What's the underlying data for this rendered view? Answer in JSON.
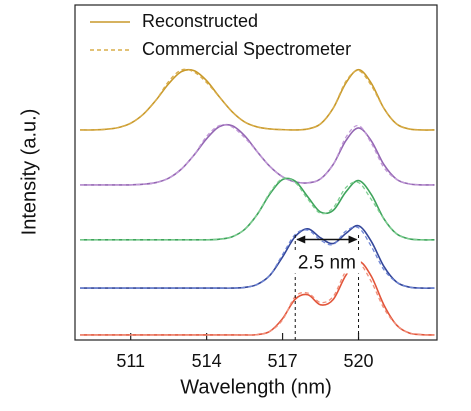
{
  "chart_data": {
    "type": "line",
    "xlabel": "Wavelength (nm)",
    "ylabel": "Intensity (a.u.)",
    "x": [
      509,
      509.5,
      510,
      510.5,
      511,
      511.5,
      512,
      512.5,
      513,
      513.5,
      514,
      514.5,
      515,
      515.5,
      516,
      516.5,
      517,
      517.5,
      518,
      518.5,
      519,
      519.5,
      520,
      520.5,
      521,
      521.5,
      522,
      522.5,
      523
    ],
    "xlim": [
      508.8,
      523.1
    ],
    "xticks": [
      511,
      514,
      517,
      520
    ],
    "ylim": [
      0,
      10
    ],
    "series": [
      {
        "name": "Reconstructed",
        "color": "#c8992a",
        "dashed": false,
        "values": [
          6.27,
          6.27,
          6.29,
          6.34,
          6.47,
          6.74,
          7.16,
          7.65,
          8.01,
          8.04,
          7.74,
          7.26,
          6.82,
          6.51,
          6.36,
          6.3,
          6.28,
          6.27,
          6.3,
          6.45,
          6.92,
          7.67,
          8.07,
          7.67,
          6.92,
          6.45,
          6.3,
          6.27,
          6.27
        ]
      },
      {
        "name": "Commercial Spectrometer",
        "color": "#d9ad4a",
        "dashed": true,
        "values": [
          6.27,
          6.27,
          6.29,
          6.34,
          6.47,
          6.74,
          7.16,
          7.72,
          8.06,
          8.0,
          7.68,
          7.26,
          6.82,
          6.51,
          6.36,
          6.3,
          6.28,
          6.27,
          6.3,
          6.45,
          6.92,
          7.72,
          8.04,
          7.6,
          6.92,
          6.45,
          6.3,
          6.27,
          6.27
        ]
      },
      {
        "color": "#9467b3",
        "dashed": false,
        "values": [
          4.63,
          4.63,
          4.63,
          4.63,
          4.63,
          4.65,
          4.7,
          4.83,
          5.1,
          5.52,
          6.01,
          6.37,
          6.4,
          6.1,
          5.62,
          5.18,
          4.87,
          4.72,
          4.69,
          4.81,
          5.24,
          5.95,
          6.33,
          5.95,
          5.24,
          4.8,
          4.66,
          4.63,
          4.63
        ]
      },
      {
        "color": "#c29ad8",
        "dashed": true,
        "values": [
          4.63,
          4.63,
          4.63,
          4.63,
          4.63,
          4.65,
          4.7,
          4.83,
          5.1,
          5.52,
          6.08,
          6.4,
          6.36,
          6.04,
          5.62,
          5.18,
          4.87,
          4.72,
          4.69,
          4.81,
          5.24,
          6.05,
          6.4,
          5.88,
          5.15,
          4.8,
          4.66,
          4.63,
          4.63
        ]
      },
      {
        "color": "#3fa45c",
        "dashed": false,
        "values": [
          2.99,
          2.99,
          2.99,
          2.99,
          2.99,
          2.99,
          2.99,
          2.99,
          2.99,
          2.99,
          2.99,
          3.01,
          3.08,
          3.3,
          3.75,
          4.36,
          4.79,
          4.74,
          4.27,
          3.82,
          3.87,
          4.42,
          4.76,
          4.35,
          3.62,
          3.17,
          3.02,
          2.99,
          2.99
        ]
      },
      {
        "color": "#7fce92",
        "dashed": true,
        "values": [
          2.99,
          2.99,
          2.99,
          2.99,
          2.99,
          2.99,
          2.99,
          2.99,
          2.99,
          2.99,
          2.99,
          3.01,
          3.08,
          3.3,
          3.75,
          4.4,
          4.82,
          4.7,
          4.2,
          3.78,
          3.95,
          4.55,
          4.7,
          4.2,
          3.62,
          3.17,
          3.02,
          2.99,
          2.99
        ]
      },
      {
        "color": "#34479a",
        "dashed": false,
        "values": [
          1.55,
          1.55,
          1.55,
          1.55,
          1.55,
          1.55,
          1.55,
          1.55,
          1.55,
          1.55,
          1.55,
          1.55,
          1.55,
          1.57,
          1.66,
          1.93,
          2.48,
          3.09,
          3.32,
          3.05,
          2.88,
          3.18,
          3.41,
          2.95,
          2.2,
          1.73,
          1.58,
          1.55,
          1.55
        ]
      },
      {
        "color": "#6f86d6",
        "dashed": true,
        "values": [
          1.55,
          1.55,
          1.55,
          1.55,
          1.55,
          1.55,
          1.55,
          1.55,
          1.55,
          1.55,
          1.55,
          1.55,
          1.55,
          1.57,
          1.66,
          1.93,
          2.55,
          3.15,
          3.28,
          2.98,
          2.85,
          3.25,
          3.35,
          2.8,
          2.1,
          1.73,
          1.58,
          1.55,
          1.55
        ]
      },
      {
        "color": "#e2553a",
        "dashed": false,
        "values": [
          0.15,
          0.15,
          0.15,
          0.15,
          0.15,
          0.15,
          0.15,
          0.15,
          0.15,
          0.15,
          0.15,
          0.15,
          0.15,
          0.15,
          0.16,
          0.26,
          0.64,
          1.22,
          1.35,
          1.05,
          1.21,
          1.93,
          2.35,
          1.91,
          1.05,
          0.45,
          0.21,
          0.16,
          0.15
        ]
      },
      {
        "color": "#f0907c",
        "dashed": true,
        "values": [
          0.15,
          0.15,
          0.15,
          0.15,
          0.15,
          0.15,
          0.15,
          0.15,
          0.15,
          0.15,
          0.15,
          0.15,
          0.15,
          0.15,
          0.16,
          0.26,
          0.6,
          1.3,
          1.4,
          1.12,
          1.3,
          2.05,
          2.3,
          1.75,
          0.95,
          0.45,
          0.21,
          0.16,
          0.15
        ]
      }
    ],
    "annotation": {
      "text": "2.5 nm",
      "x": [
        517.5,
        520
      ],
      "y": 3.0
    }
  }
}
